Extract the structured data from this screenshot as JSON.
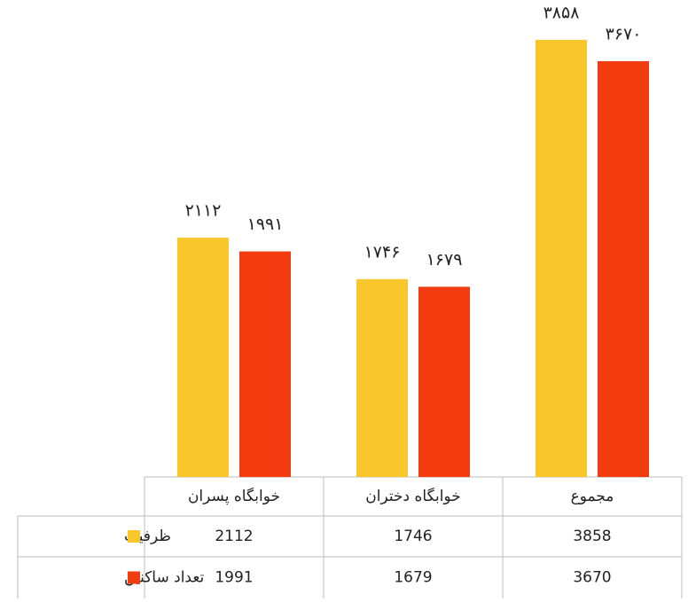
{
  "chart_data": {
    "type": "bar",
    "categories": [
      "خوابگاه پسران",
      "خوابگاه دختران",
      "مجموع"
    ],
    "series": [
      {
        "name": "ظرفیت",
        "color": "#F9C62B",
        "values": [
          2112,
          1746,
          3858
        ],
        "value_labels": [
          "۲۱۱۲",
          "۱۷۴۶",
          "۳۸۵۸"
        ]
      },
      {
        "name": "تعداد ساکنین",
        "color": "#F23B0F",
        "values": [
          1991,
          1679,
          3670
        ],
        "value_labels": [
          "۱۹۹۱",
          "۱۶۷۹",
          "۳۶۷۰"
        ]
      }
    ]
  }
}
